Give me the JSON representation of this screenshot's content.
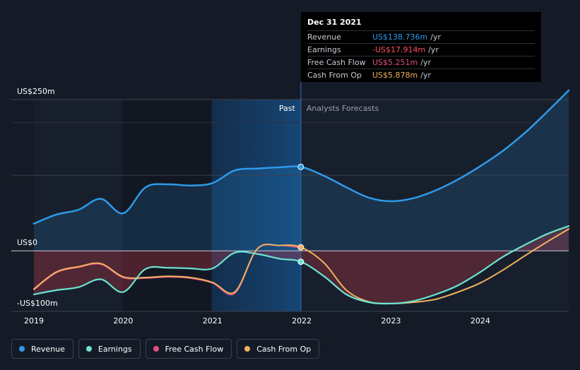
{
  "tooltip": {
    "date": "Dec 31 2021",
    "rows": [
      {
        "name": "Revenue",
        "value": "US$138.736m",
        "unit": "/yr",
        "color": "#2e9bea"
      },
      {
        "name": "Earnings",
        "value": "-US$17.914m",
        "unit": "/yr",
        "color": "#ff4d5a"
      },
      {
        "name": "Free Cash Flow",
        "value": "US$5.251m",
        "unit": "/yr",
        "color": "#e0507f"
      },
      {
        "name": "Cash From Op",
        "value": "US$5.878m",
        "unit": "/yr",
        "color": "#f0b060"
      }
    ]
  },
  "legend": [
    {
      "label": "Revenue",
      "color": "#2e9bea"
    },
    {
      "label": "Earnings",
      "color": "#6be4d0"
    },
    {
      "label": "Free Cash Flow",
      "color": "#e0507f"
    },
    {
      "label": "Cash From Op",
      "color": "#f0b060"
    }
  ],
  "chart_data": {
    "type": "line",
    "title": "",
    "y_unit": "US$m",
    "ylim": [
      -100,
      250
    ],
    "xlim": [
      2019,
      2024.99
    ],
    "y_labels": {
      "top": "US$250m",
      "zero": "US$0",
      "bottom": "-US$100m"
    },
    "x_ticks": [
      2019,
      2020,
      2021,
      2022,
      2023,
      2024
    ],
    "x_tick_labels": [
      "2019",
      "2020",
      "2021",
      "2022",
      "2023",
      "2024"
    ],
    "past_label": "Past",
    "forecast_label": "Analysts Forecasts",
    "divider_x": 2021.99,
    "highlight_start": 2020.99,
    "shade_start": 2019.99,
    "series": [
      {
        "name": "Revenue",
        "color": "#2e9bea",
        "x": [
          2019.0,
          2019.25,
          2019.5,
          2019.75,
          2020.0,
          2020.25,
          2020.5,
          2020.75,
          2021.0,
          2021.25,
          2021.5,
          2021.75,
          2021.99,
          2022.25,
          2022.5,
          2022.75,
          2023.0,
          2023.25,
          2023.5,
          2023.75,
          2024.0,
          2024.25,
          2024.5,
          2024.75,
          2024.99
        ],
        "values": [
          45,
          60,
          68,
          86,
          62,
          105,
          110,
          108,
          112,
          133,
          136,
          138,
          138.736,
          124,
          105,
          88,
          82,
          87,
          100,
          118,
          140,
          165,
          195,
          230,
          265
        ]
      },
      {
        "name": "Earnings",
        "color": "#6be4d0",
        "x": [
          2019.0,
          2019.25,
          2019.5,
          2019.75,
          2020.0,
          2020.25,
          2020.5,
          2020.75,
          2021.0,
          2021.25,
          2021.5,
          2021.75,
          2021.99,
          2022.25,
          2022.5,
          2022.75,
          2023.0,
          2023.25,
          2023.5,
          2023.75,
          2024.0,
          2024.25,
          2024.5,
          2024.75,
          2024.99
        ],
        "values": [
          -72,
          -65,
          -60,
          -47,
          -68,
          -30,
          -28,
          -29,
          -29,
          -3,
          -5,
          -13,
          -17.914,
          -42,
          -72,
          -85,
          -87,
          -83,
          -72,
          -57,
          -35,
          -10,
          10,
          28,
          41
        ]
      },
      {
        "name": "Free Cash Flow",
        "color": "#e0507f",
        "x": [
          2019.0,
          2019.25,
          2019.5,
          2019.75,
          2020.0,
          2020.25,
          2020.5,
          2020.75,
          2021.0,
          2021.25,
          2021.5,
          2021.75,
          2021.99
        ],
        "values": [
          -64,
          -36,
          -27,
          -22,
          -44,
          -45,
          -43,
          -45,
          -53,
          -70,
          3,
          9,
          5.251
        ]
      },
      {
        "name": "Cash From Op",
        "color": "#f0b060",
        "x": [
          2019.0,
          2019.25,
          2019.5,
          2019.75,
          2020.0,
          2020.25,
          2020.5,
          2020.75,
          2021.0,
          2021.25,
          2021.5,
          2021.75,
          2021.99,
          2022.25,
          2022.5,
          2022.75,
          2023.0,
          2023.25,
          2023.5,
          2023.75,
          2024.0,
          2024.25,
          2024.5,
          2024.75,
          2024.99
        ],
        "values": [
          -63,
          -35,
          -26,
          -21,
          -43,
          -44,
          -42,
          -44,
          -52,
          -68,
          3,
          9,
          5.878,
          -20,
          -65,
          -84,
          -87,
          -85,
          -80,
          -68,
          -53,
          -32,
          -8,
          15,
          36
        ]
      }
    ]
  }
}
